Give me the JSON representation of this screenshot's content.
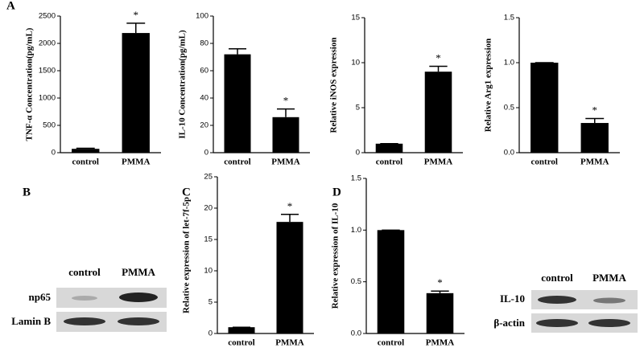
{
  "chart_data": [
    {
      "type": "bar",
      "ylabel": "TNF-α Concentration(pg/mL)",
      "categories": [
        "control",
        "PMMA"
      ],
      "values": [
        70,
        2190
      ],
      "errors": [
        10,
        180
      ],
      "significance": [
        null,
        "*"
      ],
      "ylim": [
        0,
        2500
      ],
      "yticks": [
        0,
        500,
        1000,
        1500,
        2000,
        2500
      ],
      "color": "#000000"
    },
    {
      "type": "bar",
      "ylabel": "IL-10 Concentration(pg/mL)",
      "categories": [
        "control",
        "PMMA"
      ],
      "values": [
        72,
        26
      ],
      "errors": [
        4,
        6
      ],
      "significance": [
        null,
        "*"
      ],
      "ylim": [
        0,
        100
      ],
      "yticks": [
        0,
        20,
        40,
        60,
        80,
        100
      ],
      "color": "#000000"
    },
    {
      "type": "bar",
      "ylabel": "Relative iNOS expression",
      "categories": [
        "control",
        "PMMA"
      ],
      "values": [
        1,
        9
      ],
      "errors": [
        0,
        0.6
      ],
      "significance": [
        null,
        "*"
      ],
      "ylim": [
        0,
        15
      ],
      "yticks": [
        0,
        5,
        10,
        15
      ],
      "color": "#000000"
    },
    {
      "type": "bar",
      "ylabel": "Relative Arg1 expression",
      "categories": [
        "control",
        "PMMA"
      ],
      "values": [
        1,
        0.33
      ],
      "errors": [
        0,
        0.05
      ],
      "significance": [
        null,
        "*"
      ],
      "ylim": [
        0,
        1.5
      ],
      "yticks": [
        {
          "value": 0,
          "label": "0.0"
        },
        0.5,
        {
          "value": 1,
          "label": "1.0"
        },
        1.5
      ],
      "color": "#000000"
    },
    {
      "type": "bar",
      "ylabel": "Relative expression of let-7f-5p",
      "categories": [
        "control",
        "PMMA"
      ],
      "values": [
        1,
        17.8
      ],
      "errors": [
        0,
        1.2
      ],
      "significance": [
        null,
        "*"
      ],
      "ylim": [
        0,
        25
      ],
      "yticks": [
        0,
        5,
        10,
        15,
        20,
        25
      ],
      "color": "#000000"
    },
    {
      "type": "bar",
      "ylabel": "Relative expression of IL-10",
      "categories": [
        "control",
        "PMMA"
      ],
      "values": [
        1,
        0.39
      ],
      "errors": [
        0,
        0.02
      ],
      "significance": [
        null,
        "*"
      ],
      "ylim": [
        0,
        1.5
      ],
      "yticks": [
        {
          "value": 0,
          "label": "0.0"
        },
        0.5,
        {
          "value": 1,
          "label": "1.0"
        },
        1.5
      ],
      "color": "#000000"
    }
  ],
  "panel_labels": [
    "A",
    "B",
    "C",
    "D"
  ],
  "blots": [
    {
      "lanes": [
        "control",
        "PMMA"
      ],
      "rows": [
        "np65",
        "Lamin B"
      ]
    },
    {
      "lanes": [
        "control",
        "PMMA"
      ],
      "rows": [
        "IL-10",
        "β-actin"
      ]
    }
  ]
}
